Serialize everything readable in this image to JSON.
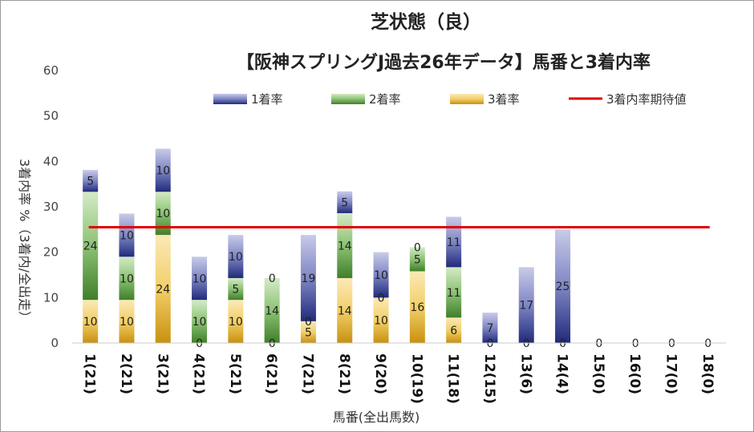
{
  "chart_data": {
    "type": "bar",
    "stacked": true,
    "title": "芝状態（良）",
    "subtitle": "【阪神スプリングJ過去26年データ】馬番と3着内率",
    "xlabel": "馬番(全出馬数)",
    "ylabel": "3着内率 %（3着内/全出走）",
    "ylim": [
      0,
      60
    ],
    "yticks": [
      0,
      10,
      20,
      30,
      40,
      50,
      60
    ],
    "categories": [
      "1(21)",
      "2(21)",
      "3(21)",
      "4(21)",
      "5(21)",
      "6(21)",
      "7(21)",
      "8(21)",
      "9(20)",
      "10(19)",
      "11(18)",
      "12(15)",
      "13(6)",
      "14(4)",
      "15(0)",
      "16(0)",
      "17(0)",
      "18(0)"
    ],
    "series": [
      {
        "name": "3着率",
        "color": "#d4a017",
        "values": [
          9.5,
          9.5,
          23.8,
          0,
          9.5,
          0,
          4.8,
          14.3,
          10,
          15.8,
          5.6,
          0,
          0,
          0,
          0,
          0,
          0,
          0
        ]
      },
      {
        "name": "2着率",
        "color": "#5a9e3a",
        "values": [
          23.8,
          9.5,
          9.5,
          9.5,
          4.8,
          14.3,
          0,
          14.3,
          0,
          5.3,
          11.1,
          0,
          0,
          0,
          0,
          0,
          0,
          0
        ]
      },
      {
        "name": "1着率",
        "color": "#2f3f8f",
        "values": [
          4.8,
          9.5,
          9.5,
          9.5,
          9.5,
          0,
          19,
          4.8,
          10,
          0,
          11.1,
          6.7,
          16.7,
          25,
          0,
          0,
          0,
          0
        ]
      }
    ],
    "labels": {
      "3着率": [
        "10",
        "10",
        "24",
        "0",
        "10",
        "0",
        "5",
        "14",
        "10",
        "16",
        "6",
        "0",
        "0",
        "0",
        "0",
        "0",
        "0",
        "0"
      ],
      "2着率": [
        "24",
        "10",
        "10",
        "10",
        "5",
        "14",
        "0",
        "14",
        "0",
        "5",
        "11",
        "",
        "",
        "",
        "",
        "",
        "",
        ""
      ],
      "1着率": [
        "5",
        "10",
        "10",
        "10",
        "10",
        "0",
        "19",
        "5",
        "10",
        "0",
        "11",
        "7",
        "17",
        "25",
        "",
        "",
        "",
        ""
      ]
    },
    "expected_line": {
      "name": "3着内率期待値",
      "value": 25.5,
      "color": "#e00000"
    },
    "legend": [
      "1着率",
      "2着率",
      "3着率",
      "3着内率期待値"
    ]
  }
}
